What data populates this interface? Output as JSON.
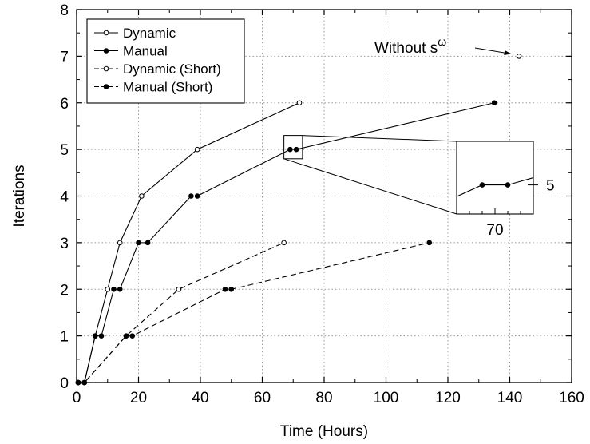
{
  "chart_data": {
    "type": "line",
    "xlabel": "Time (Hours)",
    "ylabel": "Iterations",
    "xlim": [
      0,
      160
    ],
    "ylim": [
      0,
      8
    ],
    "xticks": [
      0,
      20,
      40,
      60,
      80,
      100,
      120,
      140,
      160
    ],
    "yticks": [
      0,
      1,
      2,
      3,
      4,
      5,
      6,
      7,
      8
    ],
    "grid": true,
    "legend_position": "top-left",
    "series": [
      {
        "name": "Dynamic",
        "line_style": "solid",
        "marker": "open-circle",
        "points": [
          [
            0.5,
            0
          ],
          [
            2.5,
            0
          ],
          [
            6,
            1
          ],
          [
            10,
            2
          ],
          [
            14,
            3
          ],
          [
            21,
            4
          ],
          [
            39,
            5
          ],
          [
            72,
            6
          ]
        ]
      },
      {
        "name": "Manual",
        "line_style": "solid",
        "marker": "filled-circle",
        "points": [
          [
            0.5,
            0
          ],
          [
            2.5,
            0
          ],
          [
            6,
            1
          ],
          [
            8,
            1
          ],
          [
            12,
            2
          ],
          [
            14,
            2
          ],
          [
            20,
            3
          ],
          [
            23,
            3
          ],
          [
            37,
            4
          ],
          [
            39,
            4
          ],
          [
            69,
            5
          ],
          [
            71,
            5
          ],
          [
            135,
            6
          ]
        ]
      },
      {
        "name": "Dynamic (Short)",
        "line_style": "dashed",
        "marker": "open-circle",
        "points": [
          [
            0.5,
            0
          ],
          [
            2.5,
            0
          ],
          [
            16,
            1
          ],
          [
            33,
            2
          ],
          [
            67,
            3
          ]
        ]
      },
      {
        "name": "Manual (Short)",
        "line_style": "dashed",
        "marker": "filled-circle",
        "points": [
          [
            0.5,
            0
          ],
          [
            2.5,
            0
          ],
          [
            16,
            1
          ],
          [
            18,
            1
          ],
          [
            48,
            2
          ],
          [
            50,
            2
          ],
          [
            114,
            3
          ]
        ]
      }
    ],
    "extra_point": {
      "label": "Without s",
      "label_superscript": "ω",
      "x": 143,
      "y": 7,
      "marker": "open-circle"
    },
    "inset": {
      "zoom_region": {
        "xlim": [
          67,
          73
        ],
        "ylim": [
          4.8,
          5.3
        ]
      },
      "xlim": [
        67,
        73
      ],
      "ylim": [
        4.8,
        5.3
      ],
      "x_tick_label": "70",
      "y_tick_label": "5",
      "series_name": "Manual",
      "points": [
        [
          66,
          4.88
        ],
        [
          69,
          5
        ],
        [
          71,
          5
        ],
        [
          73,
          5.05
        ]
      ]
    }
  }
}
